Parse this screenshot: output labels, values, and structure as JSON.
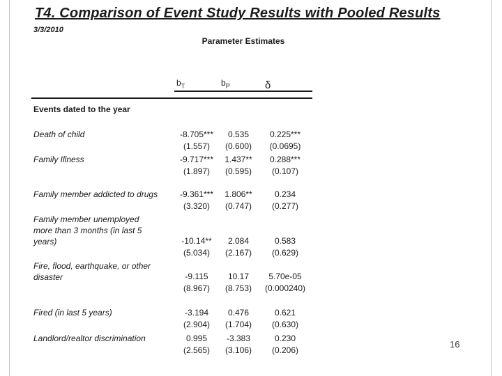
{
  "slide": {
    "title": "T4. Comparison of Event Study Results with Pooled Results",
    "date": "3/3/2010",
    "page_number": "16"
  },
  "table": {
    "caption": "Parameter Estimates",
    "headers": [
      {
        "base": "b",
        "sub": "T"
      },
      {
        "base": "b",
        "sub": "P"
      },
      {
        "base": "δ",
        "sub": ""
      }
    ],
    "section_header": "Events dated to the year",
    "rows": [
      {
        "label_lines": [
          "Death of child"
        ],
        "estimates": [
          "-8.705***",
          "0.535",
          "0.225***"
        ],
        "std_errors": [
          "(1.557)",
          "(0.600)",
          "(0.0695)"
        ]
      },
      {
        "label_lines": [
          "Family Illness"
        ],
        "estimates": [
          "-9.717***",
          "1.437**",
          "0.288***"
        ],
        "std_errors": [
          "(1.897)",
          "(0.595)",
          "(0.107)"
        ]
      },
      {
        "label_lines": [
          "Family member addicted to drugs"
        ],
        "estimates": [
          "-9.361***",
          "1.806**",
          "0.234"
        ],
        "std_errors": [
          "(3.320)",
          "(0.747)",
          "(0.277)"
        ]
      },
      {
        "label_lines": [
          "Family member unemployed",
          "more than 3 months (in last 5",
          "years)"
        ],
        "estimates": [
          "-10.14**",
          "2.084",
          "0.583"
        ],
        "std_errors": [
          "(5.034)",
          "(2.167)",
          "(0.629)"
        ]
      },
      {
        "label_lines": [
          "Fire, flood, earthquake, or other",
          "disaster"
        ],
        "estimates": [
          "-9.115",
          "10.17",
          "5.70e-05"
        ],
        "std_errors": [
          "(8.967)",
          "(8.753)",
          "(0.000240)"
        ]
      },
      {
        "label_lines": [
          "Fired (in last 5 years)"
        ],
        "estimates": [
          "-3.194",
          "0.476",
          "0.621"
        ],
        "std_errors": [
          "(2.904)",
          "(1.704)",
          "(0.630)"
        ]
      },
      {
        "label_lines": [
          "Landlord/realtor discrimination"
        ],
        "estimates": [
          "0.995",
          "-3.383",
          "0.230"
        ],
        "std_errors": [
          "(2.565)",
          "(3.106)",
          "(0.206)"
        ]
      }
    ]
  }
}
